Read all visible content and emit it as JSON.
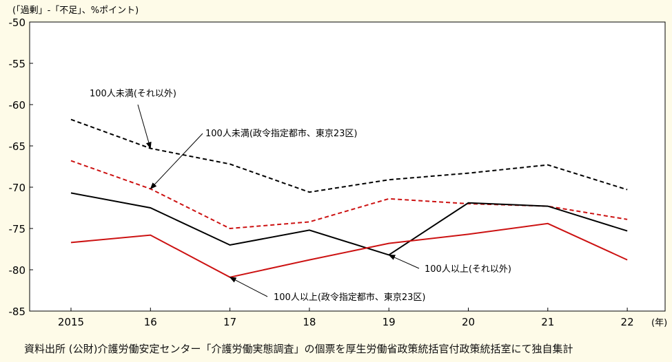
{
  "chart_data": {
    "type": "line",
    "y_unit_label": "(「過剰」-「不足」、%ポイント)",
    "x_unit_label": "(年)",
    "categories": [
      "2015",
      "16",
      "17",
      "18",
      "19",
      "20",
      "21",
      "22"
    ],
    "ylim": [
      -85,
      -50
    ],
    "yticks": [
      -50,
      -55,
      -60,
      -65,
      -70,
      -75,
      -80,
      -85
    ],
    "grid": false,
    "series": [
      {
        "name": "100人未満(それ以外)",
        "color": "#000000",
        "style": "dashed",
        "values": [
          -61.8,
          -65.3,
          -67.2,
          -70.6,
          -69.1,
          -68.3,
          -67.3,
          -70.3
        ]
      },
      {
        "name": "100人未満(政令指定都市、東京23区)",
        "color": "#cc1111",
        "style": "dashed",
        "values": [
          -66.8,
          -70.2,
          -75.0,
          -74.2,
          -71.4,
          -72.0,
          -72.3,
          -73.9
        ]
      },
      {
        "name": "100人以上(それ以外)",
        "color": "#000000",
        "style": "solid",
        "values": [
          -70.7,
          -72.5,
          -77.0,
          -75.2,
          -78.2,
          -71.9,
          -72.3,
          -75.3
        ]
      },
      {
        "name": "100人以上(政令指定都市、東京23区)",
        "color": "#cc1111",
        "style": "solid",
        "values": [
          -76.7,
          -75.8,
          -80.9,
          -78.8,
          -76.8,
          -75.7,
          -74.4,
          -78.8
        ]
      }
    ]
  },
  "source_note": "資料出所 (公財)介護労働安定センター「介護労働実態調査」の個票を厚生労働省政策統括官付政策統括室にて独自集計"
}
